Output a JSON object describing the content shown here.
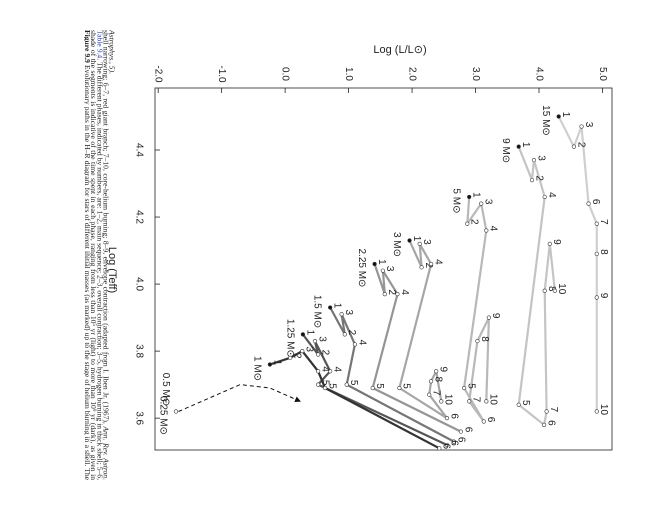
{
  "caption": {
    "label": "Figure 9.9",
    "text_before": "Evolutionary paths in the H–R diagram for stars of different initial masses (as marked) up to the stage of helium burning in a shell. The shade of the segments is indicative of the time spent in each phase, ranging from less than 10⁵ yr (light) to more than 10⁹ yr (dark), as given in",
    "link": "Table 9.4",
    "text_after": ". The different phases, indicated by numbers, are: 1–2, main sequence; 2–3, overall contraction; 3–5, hydrogen burning in thick shell; 5–6, shell narrowing; 6–7, red giant branch; 7–10, core-helium burning; 8–9, envelope contraction (adapted from I. Iben Jr. (1967),",
    "source": "Ann. Rev. Astron. Astrophys., 5)."
  },
  "chart_data": {
    "type": "hr-tracks",
    "x_label": "Log (Teff)",
    "y_label": "Log (L/L⊙)",
    "xlim": [
      4.585,
      3.505
    ],
    "xticks": [
      4.4,
      4.2,
      {
        "value": 4.0,
        "label": "4.0"
      },
      3.8,
      3.6
    ],
    "ylim": [
      -2.05,
      5.15
    ],
    "yticks": [
      {
        "value": -2,
        "label": "-2.0"
      },
      {
        "value": -1,
        "label": "-1.0"
      },
      {
        "value": 0,
        "label": "0.0"
      },
      {
        "value": 1,
        "label": "1.0"
      },
      {
        "value": 2,
        "label": "2.0"
      },
      {
        "value": 3,
        "label": "3.0"
      },
      {
        "value": 4,
        "label": "4.0"
      },
      {
        "value": 5,
        "label": "5.0"
      }
    ],
    "tracks": [
      {
        "mass": "15 M⊙",
        "color": "#cfcfcf",
        "points": [
          {
            "label": "1",
            "logT": 4.5,
            "logL": 4.31
          },
          {
            "label": "2",
            "logT": 4.41,
            "logL": 4.55
          },
          {
            "label": "3",
            "logT": 4.47,
            "logL": 4.67
          },
          {
            "label": "6",
            "logT": 4.24,
            "logL": 4.78
          },
          {
            "label": "7",
            "logT": 4.18,
            "logL": 4.91
          },
          {
            "label": "8",
            "logT": 4.09,
            "logL": 4.91
          },
          {
            "label": "9",
            "logT": 3.96,
            "logL": 4.91
          },
          {
            "label": "10",
            "logT": 3.62,
            "logL": 4.91
          }
        ]
      },
      {
        "mass": "9 M⊙",
        "color": "#c4c4c4",
        "points": [
          {
            "label": "1",
            "logT": 4.41,
            "logL": 3.68
          },
          {
            "label": "2",
            "logT": 4.31,
            "logL": 3.89
          },
          {
            "label": "3",
            "logT": 4.37,
            "logL": 3.92
          },
          {
            "label": "4",
            "logT": 4.26,
            "logL": 4.09
          },
          {
            "label": "5",
            "logT": 3.64,
            "logL": 3.68
          },
          {
            "label": "6",
            "logT": 3.58,
            "logL": 4.08
          },
          {
            "label": "7",
            "logT": 3.62,
            "logL": 4.12
          },
          {
            "label": "8",
            "logT": 3.98,
            "logL": 4.09
          },
          {
            "label": "9",
            "logT": 4.12,
            "logL": 4.17
          },
          {
            "label": "10",
            "logT": 3.98,
            "logL": 4.25
          }
        ]
      },
      {
        "mass": "5 M⊙",
        "color": "#b8b8b8",
        "points": [
          {
            "label": "1",
            "logT": 4.26,
            "logL": 2.9
          },
          {
            "label": "2",
            "logT": 4.18,
            "logL": 2.87
          },
          {
            "label": "3",
            "logT": 4.24,
            "logL": 3.09
          },
          {
            "label": "4",
            "logT": 4.16,
            "logL": 3.17
          },
          {
            "label": "5",
            "logT": 3.69,
            "logL": 2.82
          },
          {
            "label": "6",
            "logT": 3.59,
            "logL": 3.13
          },
          {
            "label": "7",
            "logT": 3.65,
            "logL": 2.9
          },
          {
            "label": "8",
            "logT": 3.83,
            "logL": 3.03
          },
          {
            "label": "9",
            "logT": 3.9,
            "logL": 3.21
          },
          {
            "label": "10",
            "logT": 3.65,
            "logL": 3.17
          }
        ]
      },
      {
        "mass": "3 M⊙",
        "color": "#a6a6a6",
        "points": [
          {
            "label": "1",
            "logT": 4.13,
            "logL": 1.96
          },
          {
            "label": "2",
            "logT": 4.05,
            "logL": 2.15
          },
          {
            "label": "3",
            "logT": 4.12,
            "logL": 2.12
          },
          {
            "label": "4",
            "logT": 4.06,
            "logL": 2.3
          },
          {
            "label": "5",
            "logT": 3.69,
            "logL": 1.8
          },
          {
            "label": "6",
            "logT": 3.6,
            "logL": 2.55
          },
          {
            "label": "7",
            "logT": 3.67,
            "logL": 2.27
          },
          {
            "label": "8",
            "logT": 3.71,
            "logL": 2.3
          },
          {
            "label": "9",
            "logT": 3.74,
            "logL": 2.38
          },
          {
            "label": "10",
            "logT": 3.65,
            "logL": 2.46
          }
        ]
      },
      {
        "mass": "2.25 M⊙",
        "color": "#959595",
        "points": [
          {
            "label": "1",
            "logT": 4.06,
            "logL": 1.41
          },
          {
            "label": "2",
            "logT": 3.97,
            "logL": 1.57
          },
          {
            "label": "3",
            "logT": 4.04,
            "logL": 1.54
          },
          {
            "label": "4",
            "logT": 3.97,
            "logL": 1.77
          },
          {
            "label": "5",
            "logT": 3.69,
            "logL": 1.38
          },
          {
            "label": "6",
            "logT": 3.56,
            "logL": 2.77
          }
        ]
      },
      {
        "mass": "1.5 M⊙",
        "color": "#767676",
        "points": [
          {
            "label": "1",
            "logT": 3.93,
            "logL": 0.71
          },
          {
            "label": "2",
            "logT": 3.85,
            "logL": 0.94
          },
          {
            "label": "3",
            "logT": 3.91,
            "logL": 0.89
          },
          {
            "label": "4",
            "logT": 3.82,
            "logL": 1.1
          },
          {
            "label": "5",
            "logT": 3.7,
            "logL": 0.97
          },
          {
            "label": "6",
            "logT": 3.53,
            "logL": 2.66
          }
        ]
      },
      {
        "mass": "1.25 M⊙",
        "color": "#555555",
        "points": [
          {
            "label": "1",
            "logT": 3.85,
            "logL": 0.28
          },
          {
            "label": "2",
            "logT": 3.79,
            "logL": 0.52
          },
          {
            "label": "3",
            "logT": 3.83,
            "logL": 0.47
          },
          {
            "label": "4",
            "logT": 3.74,
            "logL": 0.71
          },
          {
            "label": "5",
            "logT": 3.7,
            "logL": 0.52
          },
          {
            "label": "6",
            "logT": 3.52,
            "logL": 2.55
          }
        ]
      },
      {
        "mass": "1 M⊙",
        "color": "#333333",
        "points": [
          {
            "label": "1",
            "logT": 3.76,
            "logL": -0.24
          },
          {
            "label": "2",
            "logT": 3.78,
            "logL": 0.08
          },
          {
            "label": "3",
            "logT": 3.8,
            "logL": 0.27
          },
          {
            "label": "4",
            "logT": 3.74,
            "logL": 0.52
          },
          {
            "label": "5",
            "logT": 3.69,
            "logL": 0.63
          },
          {
            "label": "6",
            "logT": 3.51,
            "logL": 2.43
          }
        ]
      },
      {
        "mass": "0.5 M⊙",
        "color": "#111111",
        "dashed": true,
        "points": [
          {
            "logT": 3.62,
            "logL": -1.68
          },
          {
            "logT": 3.7,
            "logL": -0.71
          },
          {
            "logT": 3.69,
            "logL": -0.24
          },
          {
            "logT": 3.65,
            "logL": 0.24
          }
        ]
      },
      {
        "mass": "0.25 M⊙",
        "color": "#111111",
        "points": [
          {
            "logT": 3.62,
            "logL": -1.72
          }
        ]
      }
    ]
  }
}
